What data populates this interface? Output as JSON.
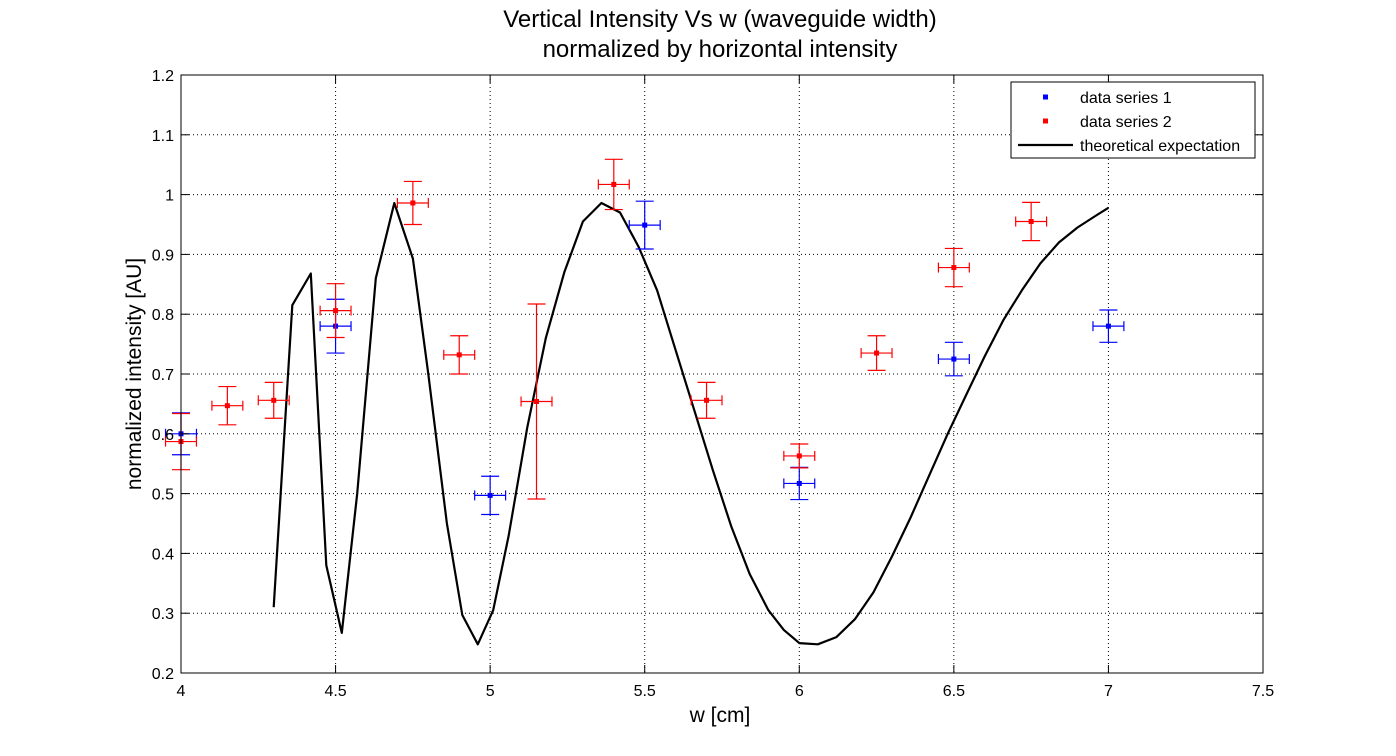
{
  "chart_data": {
    "type": "scatter",
    "title": [
      "Vertical Intensity Vs w (waveguide width)",
      "normalized by horizontal intensity"
    ],
    "xlabel": "w [cm]",
    "ylabel": "normalized intensity [AU]",
    "xlim": [
      4,
      7.5
    ],
    "ylim": [
      0.2,
      1.2
    ],
    "xticks": [
      4,
      4.5,
      5,
      5.5,
      6,
      6.5,
      7,
      7.5
    ],
    "xtick_labels": [
      "4",
      "4.5",
      "5",
      "5.5",
      "6",
      "6.5",
      "7",
      "7.5"
    ],
    "yticks": [
      0.2,
      0.3,
      0.4,
      0.5,
      0.6,
      0.7,
      0.8,
      0.9,
      1.0,
      1.1,
      1.2
    ],
    "ytick_labels": [
      "0.2",
      "0.3",
      "0.4",
      "0.5",
      "0.6",
      "0.7",
      "0.8",
      "0.9",
      "1",
      "1.1",
      "1.2"
    ],
    "grid": true,
    "legend_position": "top-right",
    "series": [
      {
        "name": "data series 1",
        "color": "#0000ff",
        "marker": "square",
        "points": [
          {
            "x": 4.0,
            "y": 0.6,
            "yerr": 0.035,
            "xerr": 0.05
          },
          {
            "x": 4.5,
            "y": 0.78,
            "yerr": 0.045,
            "xerr": 0.05
          },
          {
            "x": 5.0,
            "y": 0.497,
            "yerr": 0.032,
            "xerr": 0.05
          },
          {
            "x": 5.5,
            "y": 0.949,
            "yerr": 0.04,
            "xerr": 0.05
          },
          {
            "x": 6.0,
            "y": 0.517,
            "yerr": 0.027,
            "xerr": 0.05
          },
          {
            "x": 6.5,
            "y": 0.725,
            "yerr": 0.028,
            "xerr": 0.05
          },
          {
            "x": 7.0,
            "y": 0.78,
            "yerr": 0.027,
            "xerr": 0.05
          }
        ]
      },
      {
        "name": "data series 2",
        "color": "#ff0000",
        "marker": "square",
        "points": [
          {
            "x": 4.0,
            "y": 0.587,
            "yerr": 0.047,
            "xerr": 0.05
          },
          {
            "x": 4.15,
            "y": 0.647,
            "yerr": 0.032,
            "xerr": 0.05
          },
          {
            "x": 4.3,
            "y": 0.656,
            "yerr": 0.03,
            "xerr": 0.05
          },
          {
            "x": 4.5,
            "y": 0.806,
            "yerr": 0.045,
            "xerr": 0.05
          },
          {
            "x": 4.75,
            "y": 0.986,
            "yerr": 0.036,
            "xerr": 0.05
          },
          {
            "x": 4.9,
            "y": 0.732,
            "yerr": 0.032,
            "xerr": 0.05
          },
          {
            "x": 5.15,
            "y": 0.654,
            "yerr": 0.163,
            "xerr": 0.05
          },
          {
            "x": 5.4,
            "y": 1.017,
            "yerr": 0.042,
            "xerr": 0.05
          },
          {
            "x": 5.7,
            "y": 0.656,
            "yerr": 0.03,
            "xerr": 0.05
          },
          {
            "x": 6.0,
            "y": 0.563,
            "yerr": 0.02,
            "xerr": 0.05
          },
          {
            "x": 6.25,
            "y": 0.735,
            "yerr": 0.029,
            "xerr": 0.05
          },
          {
            "x": 6.5,
            "y": 0.878,
            "yerr": 0.032,
            "xerr": 0.05
          },
          {
            "x": 6.75,
            "y": 0.955,
            "yerr": 0.032,
            "xerr": 0.05
          }
        ]
      },
      {
        "name": "theoretical expectation",
        "color": "#000000",
        "style": "line",
        "x": [
          4.3,
          4.36,
          4.42,
          4.47,
          4.52,
          4.57,
          4.63,
          4.69,
          4.75,
          4.8,
          4.86,
          4.91,
          4.96,
          5.01,
          5.06,
          5.12,
          5.18,
          5.24,
          5.3,
          5.36,
          5.42,
          5.48,
          5.54,
          5.6,
          5.66,
          5.72,
          5.78,
          5.84,
          5.9,
          5.95,
          6.0,
          6.06,
          6.12,
          6.18,
          6.24,
          6.3,
          6.36,
          6.42,
          6.48,
          6.54,
          6.6,
          6.66,
          6.72,
          6.78,
          6.84,
          6.9,
          6.96,
          7.0
        ],
        "y": [
          0.31,
          0.815,
          0.868,
          0.38,
          0.267,
          0.5,
          0.86,
          0.986,
          0.893,
          0.7,
          0.45,
          0.297,
          0.248,
          0.305,
          0.43,
          0.61,
          0.76,
          0.87,
          0.955,
          0.986,
          0.97,
          0.913,
          0.84,
          0.74,
          0.64,
          0.54,
          0.445,
          0.365,
          0.305,
          0.272,
          0.25,
          0.248,
          0.26,
          0.29,
          0.335,
          0.395,
          0.46,
          0.53,
          0.6,
          0.665,
          0.73,
          0.79,
          0.84,
          0.885,
          0.92,
          0.945,
          0.965,
          0.978
        ]
      }
    ]
  }
}
